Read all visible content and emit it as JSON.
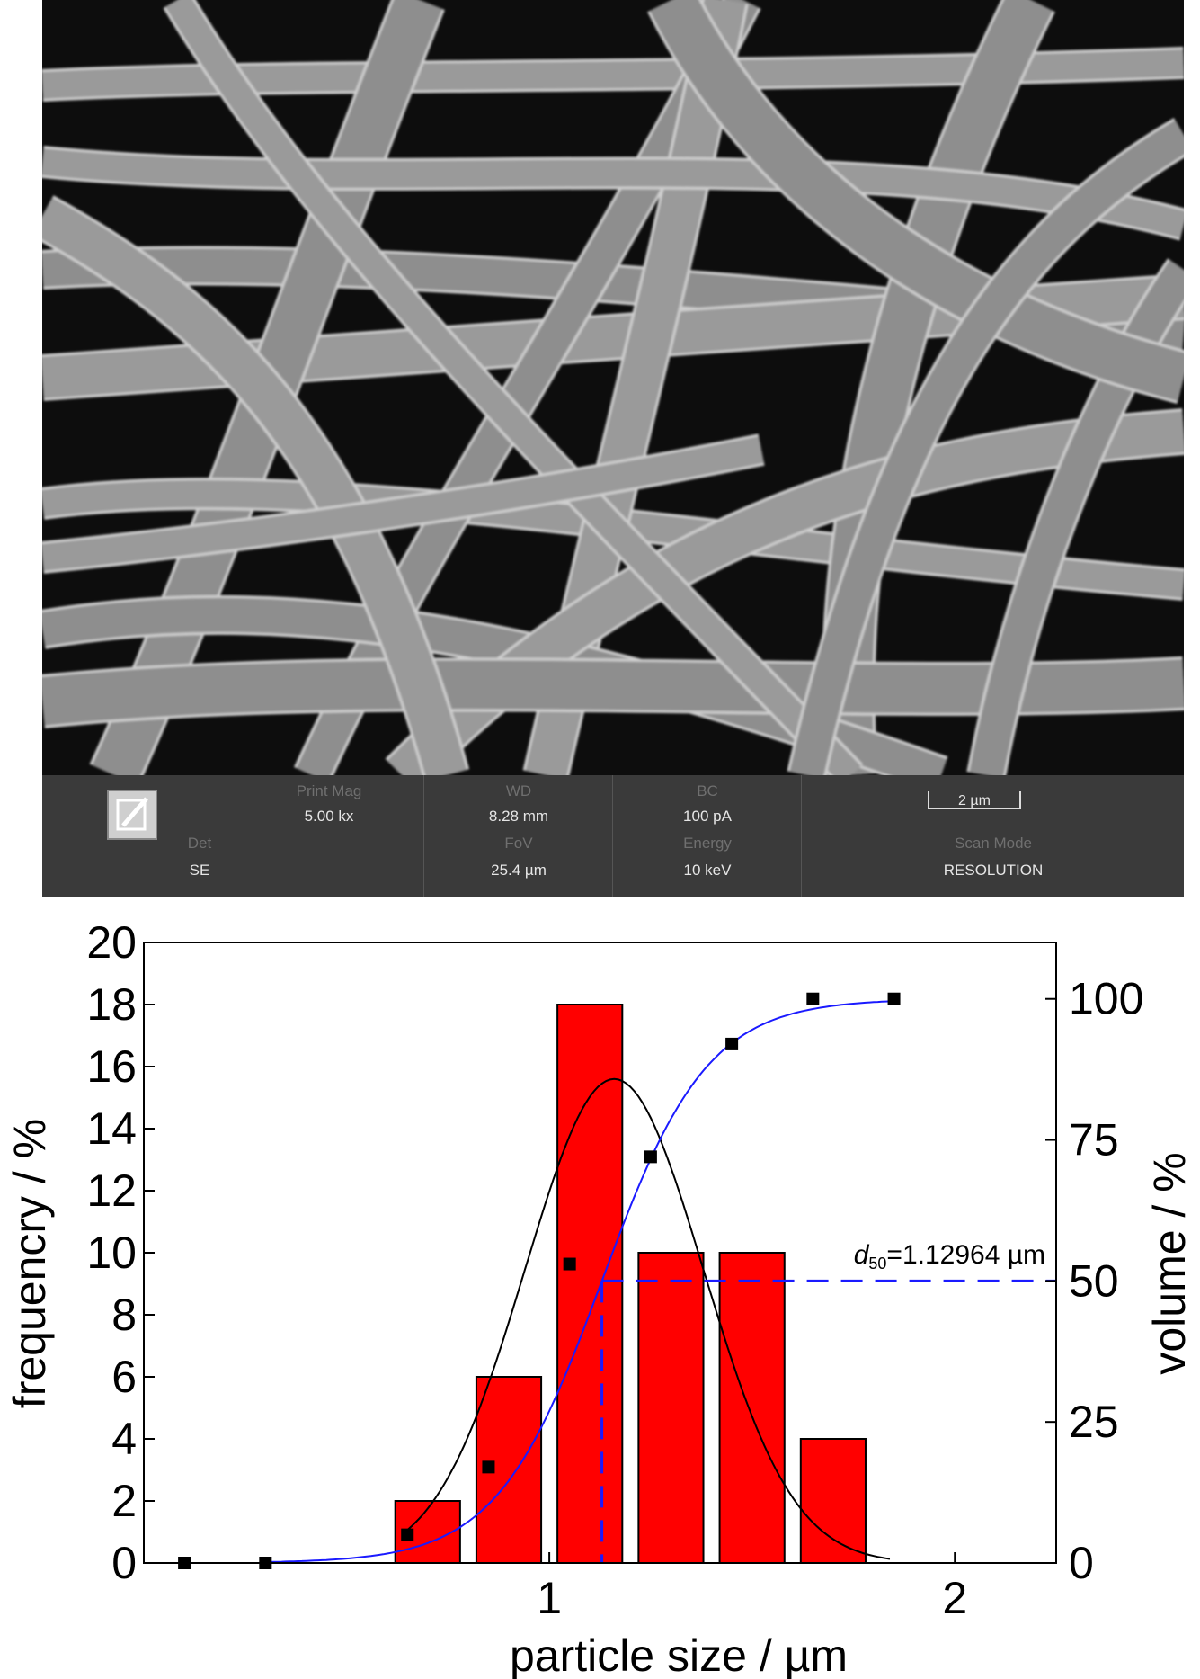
{
  "sem_panel": {
    "image_description_icon": "sem-fiber-micrograph",
    "logo_icon": "pencil-box-icon",
    "fields": [
      {
        "label": "Print Mag",
        "value": "5.00 kx"
      },
      {
        "label": "WD",
        "value": "8.28 mm"
      },
      {
        "label": "BC",
        "value": "100 pA"
      },
      {
        "label": "Det",
        "value": "SE"
      },
      {
        "label": "FoV",
        "value": "25.4 µm"
      },
      {
        "label": "Energy",
        "value": "10 keV"
      },
      {
        "label": "Scan Mode",
        "value": "RESOLUTION"
      }
    ],
    "scale_bar": "2 µm"
  },
  "chart_data": {
    "type": "bar",
    "xlabel": "particle size / µm",
    "ylabel": "frequencry / %",
    "y2label": "volume / %",
    "xlim": [
      0.0,
      2.25
    ],
    "ylim": [
      0,
      20
    ],
    "y2lim": [
      0,
      110
    ],
    "x_ticks": [
      "1",
      "2"
    ],
    "y_ticks": [
      "0",
      "2",
      "4",
      "6",
      "8",
      "10",
      "12",
      "14",
      "16",
      "18",
      "20"
    ],
    "y2_ticks": [
      "0",
      "25",
      "50",
      "75",
      "100"
    ],
    "bar_width": 0.16,
    "bars": {
      "x": [
        0.5,
        0.7,
        0.9,
        1.1,
        1.3,
        1.5,
        1.7
      ],
      "values": [
        0,
        2,
        6,
        18,
        10,
        10,
        4
      ],
      "color": "#ff0000"
    },
    "cumulative_points": {
      "x": [
        0.1,
        0.3,
        0.65,
        0.85,
        1.05,
        1.25,
        1.45,
        1.65,
        1.85
      ],
      "y2": [
        0,
        0,
        5,
        17,
        53,
        72,
        92,
        100,
        100
      ],
      "color": "#000000"
    },
    "cumulative_fit_color": "#1a1aff",
    "gaussian_fit": {
      "mean": 1.16,
      "sigma": 0.22,
      "peak": 15.6,
      "color": "#000000"
    },
    "d50": {
      "label_prefix": "d",
      "label_sub": "50",
      "label_suffix": "=1.12964 µm",
      "x": 1.12964,
      "y2": 50,
      "color": "#1a1aff"
    }
  }
}
